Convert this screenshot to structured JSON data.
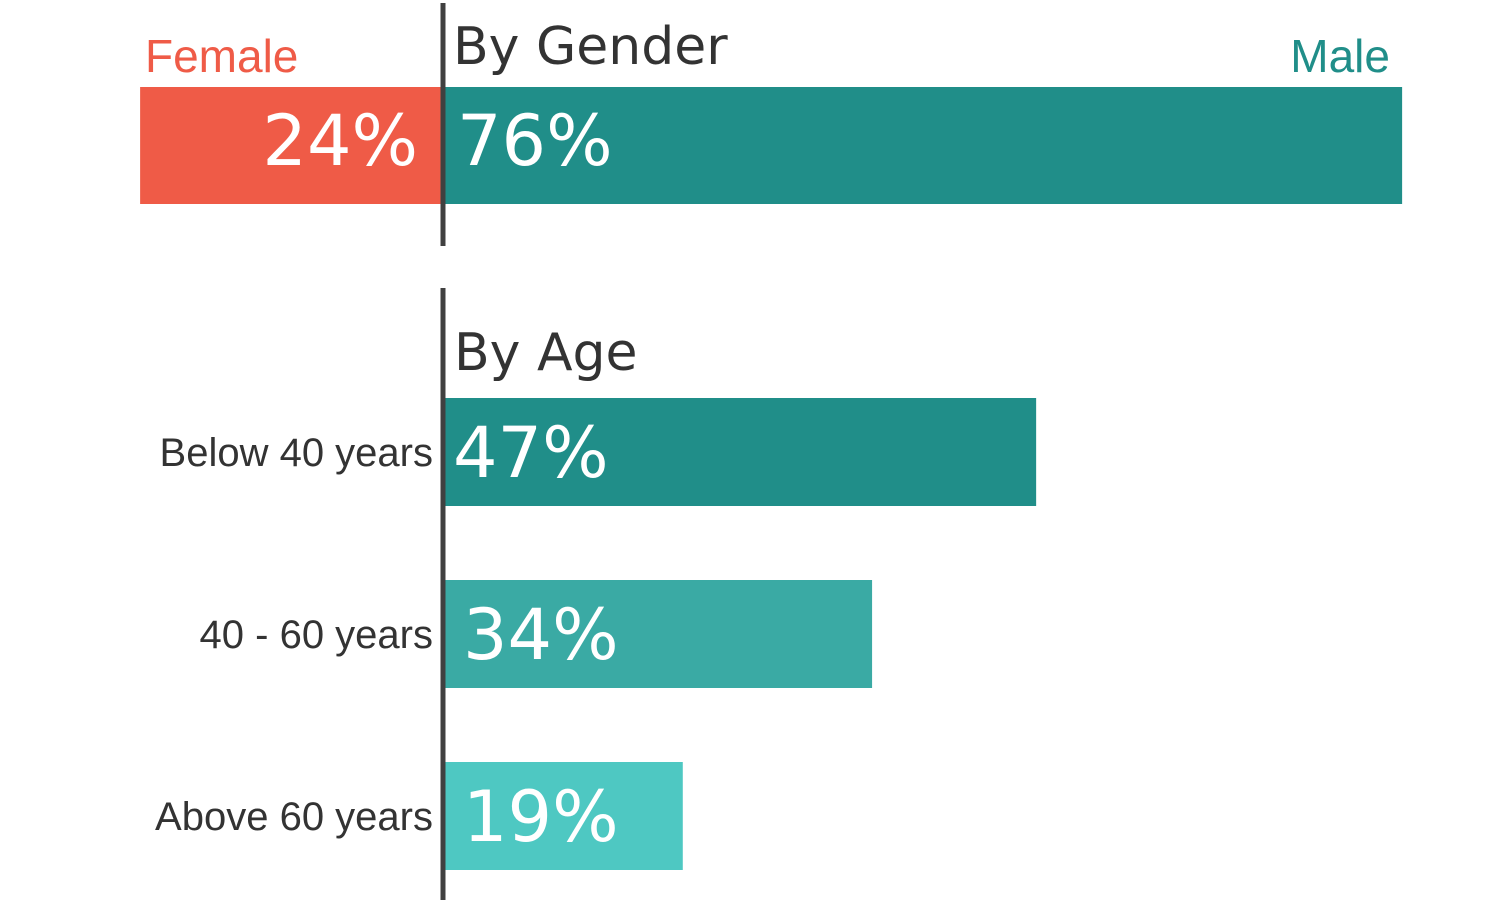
{
  "chart_data": [
    {
      "type": "bar",
      "orientation": "horizontal-diverging",
      "title": "By Gender",
      "categories": [
        "Female",
        "Male"
      ],
      "values": [
        24,
        76
      ],
      "value_suffix": "%",
      "colors": [
        "#ef5b47",
        "#208e89"
      ],
      "xlim": [
        0,
        100
      ]
    },
    {
      "type": "bar",
      "orientation": "horizontal",
      "title": "By Age",
      "categories": [
        "Below 40 years",
        "40 - 60 years",
        "Above 60 years"
      ],
      "values": [
        47,
        34,
        19
      ],
      "value_suffix": "%",
      "colors": [
        "#208e89",
        "#3aaaa4",
        "#4ec8c2"
      ],
      "xlim": [
        0,
        76
      ]
    }
  ],
  "colors": {
    "axis": "#404040",
    "text": "#333333",
    "value_text": "#ffffff"
  }
}
